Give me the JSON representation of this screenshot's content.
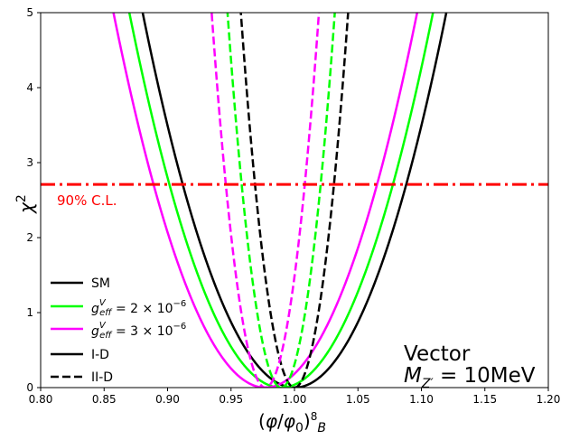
{
  "chart_data": {
    "type": "line",
    "title": "",
    "xlabel": "(φ/φ0)8B",
    "xlabel_parts": {
      "open": "(",
      "phi": "φ",
      "slash": "/",
      "phi0": "φ",
      "zero": "0",
      "close": ")",
      "sub1": "8",
      "sub2": "B"
    },
    "ylabel": "χ²",
    "ylabel_parts": {
      "chi": "χ",
      "sup": "2"
    },
    "xlim": [
      0.8,
      1.2
    ],
    "ylim": [
      0,
      5
    ],
    "xticks": [
      "0.80",
      "0.85",
      "0.90",
      "0.95",
      "1.00",
      "1.05",
      "1.10",
      "1.15",
      "1.20"
    ],
    "yticks": [
      "0",
      "1",
      "2",
      "3",
      "4",
      "5"
    ],
    "grid": false,
    "legend_position": "lower-left",
    "series": [
      {
        "name": "I-D SM",
        "model": "SM",
        "detector": "I-D",
        "color": "#000000",
        "dash": "solid",
        "center": 1.0,
        "sigma": 0.0535
      },
      {
        "name": "I-D g=2e-6",
        "model": "g_eff^V = 2 × 10^-6",
        "detector": "I-D",
        "color": "#00ff00",
        "dash": "solid",
        "center": 0.9895,
        "sigma": 0.0535
      },
      {
        "name": "I-D g=3e-6",
        "model": "g_eff^V = 3 × 10^-6",
        "detector": "I-D",
        "color": "#ff00ff",
        "dash": "solid",
        "center": 0.977,
        "sigma": 0.0535
      },
      {
        "name": "II-D SM",
        "model": "SM",
        "detector": "II-D",
        "color": "#000000",
        "dash": "dashed",
        "center": 1.0,
        "sigma": 0.0189
      },
      {
        "name": "II-D g=2e-6",
        "model": "g_eff^V = 2 × 10^-6",
        "detector": "II-D",
        "color": "#00ff00",
        "dash": "dashed",
        "center": 0.9895,
        "sigma": 0.0189
      },
      {
        "name": "II-D g=3e-6",
        "model": "g_eff^V = 3 × 10^-6",
        "detector": "II-D",
        "color": "#ff00ff",
        "dash": "dashed",
        "center": 0.977,
        "sigma": 0.0189
      }
    ],
    "reference_line": {
      "y": 2.71,
      "label": "90% C.L.",
      "color": "#ff0000",
      "style": "dash-dot"
    },
    "legend": [
      {
        "key": "sm",
        "label": "SM",
        "color": "#000000",
        "dash": "solid"
      },
      {
        "key": "g2",
        "label_g": "g",
        "label_sup": "V",
        "label_sub": "eff",
        "label_rest": " = 2 × 10",
        "label_exp": "−6",
        "color": "#00ff00",
        "dash": "solid"
      },
      {
        "key": "g3",
        "label_g": "g",
        "label_sup": "V",
        "label_sub": "eff",
        "label_rest": " = 3 × 10",
        "label_exp": "−6",
        "color": "#ff00ff",
        "dash": "solid"
      },
      {
        "key": "id",
        "label": "I-D",
        "color": "#000000",
        "dash": "solid"
      },
      {
        "key": "iid",
        "label": "II-D",
        "color": "#000000",
        "dash": "dashed"
      }
    ],
    "annotation": {
      "line1": "Vector",
      "m": "M",
      "m_sub": "Z′",
      "m_rest": " = 10MeV"
    }
  }
}
